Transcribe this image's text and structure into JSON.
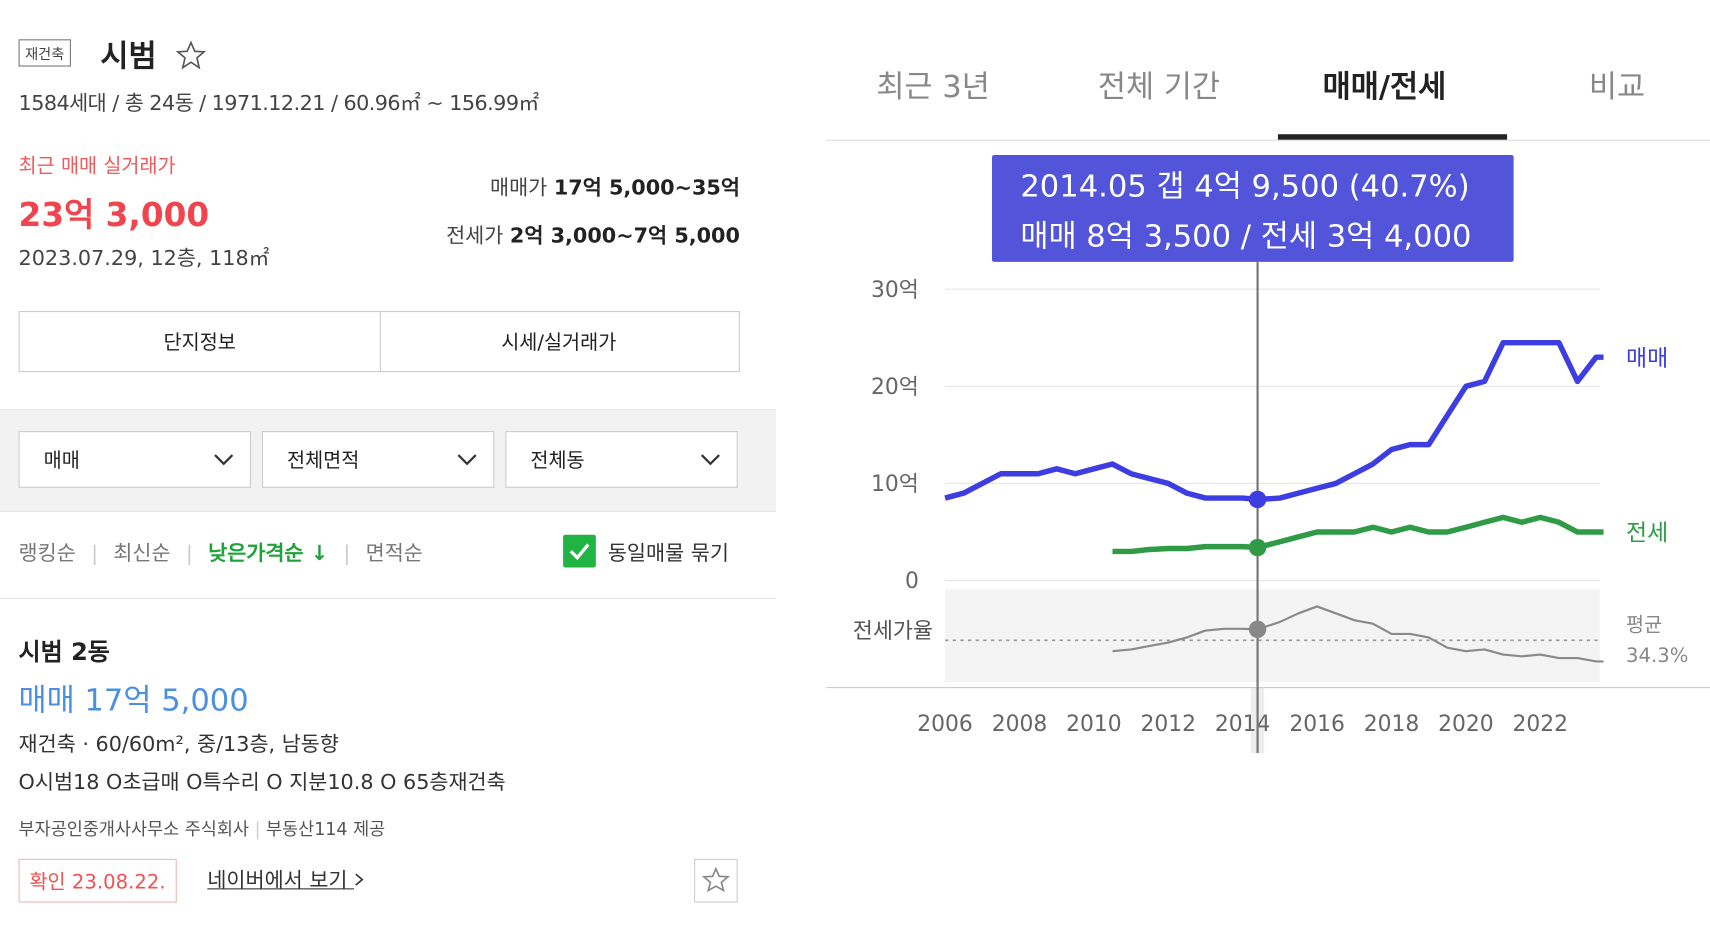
{
  "listing": {
    "badge": "재건축",
    "name": "시범",
    "info": "1584세대 / 총 24동 / 1971.12.21 / 60.96㎡ ~ 156.99㎡",
    "recent_label": "최근 매매 실거래가",
    "recent_price": "23억 3,000",
    "recent_detail": "2023.07.29, 12층, 118㎡",
    "sale_label": "매매가",
    "sale_range": "17억 5,000~35억",
    "jeonse_label": "전세가",
    "jeonse_range": "2억 3,000~7억 5,000"
  },
  "tabs": [
    "단지정보",
    "시세/실거래가"
  ],
  "filters": [
    "매매",
    "전체면적",
    "전체동"
  ],
  "sorts": [
    "랭킹순",
    "최신순",
    "낮은가격순 ↓",
    "면적순"
  ],
  "group_label": "동일매물 묶기",
  "item": {
    "title": "시범 2동",
    "price": "매매 17억 5,000",
    "spec": "재건축 · 60/60m², 중/13층, 남동향",
    "desc": "O시범18 O초급매 O특수리 O 지분10.8 O 65층재건축",
    "agent": "부자공인중개사사무소 주식회사",
    "source": "부동산114 제공",
    "confirm": "확인 23.08.22.",
    "link": "네이버에서 보기"
  },
  "chart_tabs": [
    "최근 3년",
    "전체 기간",
    "매매/전세",
    "비교"
  ],
  "chart_data": {
    "type": "line",
    "x": [
      2006,
      2006.5,
      2007,
      2007.5,
      2008,
      2008.5,
      2009,
      2009.5,
      2010,
      2010.5,
      2011,
      2011.5,
      2012,
      2012.5,
      2013,
      2013.5,
      2014,
      2014.4,
      2015,
      2015.5,
      2016,
      2016.5,
      2017,
      2017.5,
      2018,
      2018.5,
      2019,
      2019.5,
      2020,
      2020.5,
      2021,
      2021.5,
      2022,
      2022.5,
      2023,
      2023.5,
      2023.7
    ],
    "series": [
      {
        "name": "매매",
        "color": "#3d3de2",
        "values": [
          8.5,
          9.0,
          10.0,
          11.0,
          11.0,
          11.0,
          11.5,
          11.0,
          11.5,
          12.0,
          11.0,
          10.5,
          10.0,
          9.0,
          8.5,
          8.5,
          8.5,
          8.35,
          8.5,
          9.0,
          9.5,
          10.0,
          11.0,
          12.0,
          13.5,
          14.0,
          14.0,
          17.0,
          20.0,
          20.5,
          24.5,
          24.5,
          24.5,
          24.5,
          20.5,
          23.0,
          23.0
        ]
      },
      {
        "name": "전세",
        "color": "#2f9b46",
        "values": [
          null,
          null,
          null,
          null,
          null,
          null,
          null,
          null,
          null,
          3.0,
          3.0,
          3.2,
          3.3,
          3.3,
          3.5,
          3.5,
          3.5,
          3.4,
          4.0,
          4.5,
          5.0,
          5.0,
          5.0,
          5.5,
          5.0,
          5.5,
          5.0,
          5.0,
          5.5,
          6.0,
          6.5,
          6.0,
          6.5,
          6.0,
          5.0,
          5.0,
          5.0
        ]
      },
      {
        "name": "전세가율",
        "color": "#8a8a8a",
        "axis": "y2",
        "values": [
          null,
          null,
          null,
          null,
          null,
          null,
          null,
          null,
          null,
          28,
          29,
          31,
          33,
          36,
          40,
          41,
          41,
          40.7,
          45,
          50,
          54,
          50,
          46,
          44,
          38,
          38,
          36,
          30,
          28,
          29,
          26,
          25,
          26,
          24,
          24,
          22,
          22
        ]
      }
    ],
    "xlim": [
      2006,
      2023.6
    ],
    "xticks": [
      2006,
      2008,
      2010,
      2012,
      2014,
      2016,
      2018,
      2020,
      2022
    ],
    "ylim": [
      0,
      30
    ],
    "yticks": [
      0,
      {
        "value": 10,
        "label": "10억"
      },
      {
        "value": 20,
        "label": "20억"
      },
      {
        "value": 30,
        "label": "30억"
      }
    ],
    "y2lim": [
      10,
      64
    ],
    "average": {
      "label": "평균",
      "value": 34.3,
      "value_label": "34.3%"
    },
    "grid": true,
    "tooltip": {
      "x": 2014.4,
      "lines": [
        "2014.05  갭 4억 9,500 (40.7%)",
        "매매 8억 3,500 / 전세 3억 4,000"
      ]
    }
  }
}
